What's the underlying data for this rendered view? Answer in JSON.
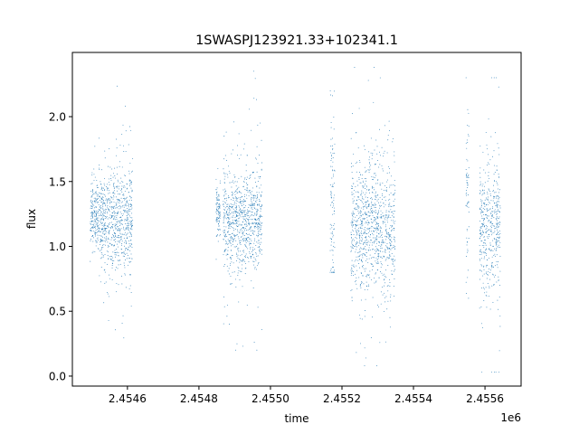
{
  "chart_data": {
    "type": "scatter",
    "title": "1SWASPJ123921.33+102341.1",
    "xlabel": "time",
    "ylabel": "flux",
    "x_offset_label": "1e6",
    "xlim": [
      2454446,
      2455701
    ],
    "ylim": [
      -0.077,
      2.495
    ],
    "xticks": [
      2454600,
      2454800,
      2455000,
      2455200,
      2455400,
      2455600
    ],
    "xtick_labels": [
      "2.4546",
      "2.4548",
      "2.4550",
      "2.4552",
      "2.4554",
      "2.4556"
    ],
    "yticks": [
      0.0,
      0.5,
      1.0,
      1.5,
      2.0
    ],
    "ytick_labels": [
      "0.0",
      "0.5",
      "1.0",
      "1.5",
      "2.0"
    ],
    "grid": false,
    "marker_color": "#1f77b4",
    "point_clusters": [
      {
        "t_range": [
          2454496,
          2454520
        ],
        "flux_median": 1.25,
        "flux_sigma": 0.12,
        "flux_range": [
          0.6,
          1.9
        ]
      },
      {
        "t_range": [
          2454520,
          2454615
        ],
        "flux_median": 1.2,
        "flux_sigma": 0.2,
        "flux_range": [
          0.05,
          2.25
        ]
      },
      {
        "t_range": [
          2454848,
          2454860
        ],
        "flux_median": 1.25,
        "flux_sigma": 0.1,
        "flux_range": [
          0.9,
          1.6
        ]
      },
      {
        "t_range": [
          2454868,
          2454977
        ],
        "flux_median": 1.2,
        "flux_sigma": 0.2,
        "flux_range": [
          0.2,
          2.35
        ]
      },
      {
        "t_range": [
          2455167,
          2455180
        ],
        "flux_median": 1.3,
        "flux_sigma": 0.35,
        "flux_range": [
          0.8,
          2.2
        ]
      },
      {
        "t_range": [
          2455225,
          2455349
        ],
        "flux_median": 1.15,
        "flux_sigma": 0.25,
        "flux_range": [
          0.08,
          2.38
        ]
      },
      {
        "t_range": [
          2455547,
          2455555
        ],
        "flux_median": 1.3,
        "flux_sigma": 0.25,
        "flux_range": [
          0.6,
          2.3
        ]
      },
      {
        "t_range": [
          2455585,
          2455643
        ],
        "flux_median": 1.15,
        "flux_sigma": 0.25,
        "flux_range": [
          0.03,
          2.3
        ]
      }
    ]
  }
}
